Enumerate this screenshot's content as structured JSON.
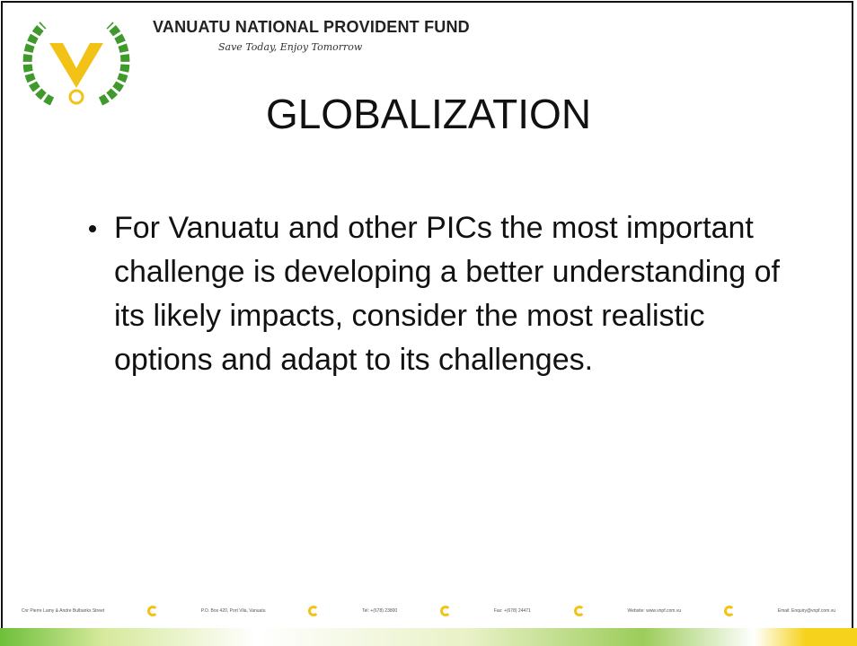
{
  "header": {
    "organization": "VANUATU NATIONAL PROVIDENT FUND",
    "tagline": "Save Today, Enjoy Tomorrow"
  },
  "slide": {
    "title": "GLOBALIZATION",
    "bullets": [
      "For Vanuatu and other PICs the most important challenge is developing a better understanding of its likely impacts, consider the most realistic options and adapt to its challenges."
    ]
  },
  "footer": {
    "items": [
      "Cnr Pierre Lamy & Andre Bulbanks Street",
      "P.O. Box 420, Port Vila, Vanuatu",
      "Tel: +(678) 23800",
      "Fax: +(678) 24471",
      "Website: www.vnpf.com.vu",
      "Email: Enquiry@vnpf.com.vu"
    ]
  }
}
